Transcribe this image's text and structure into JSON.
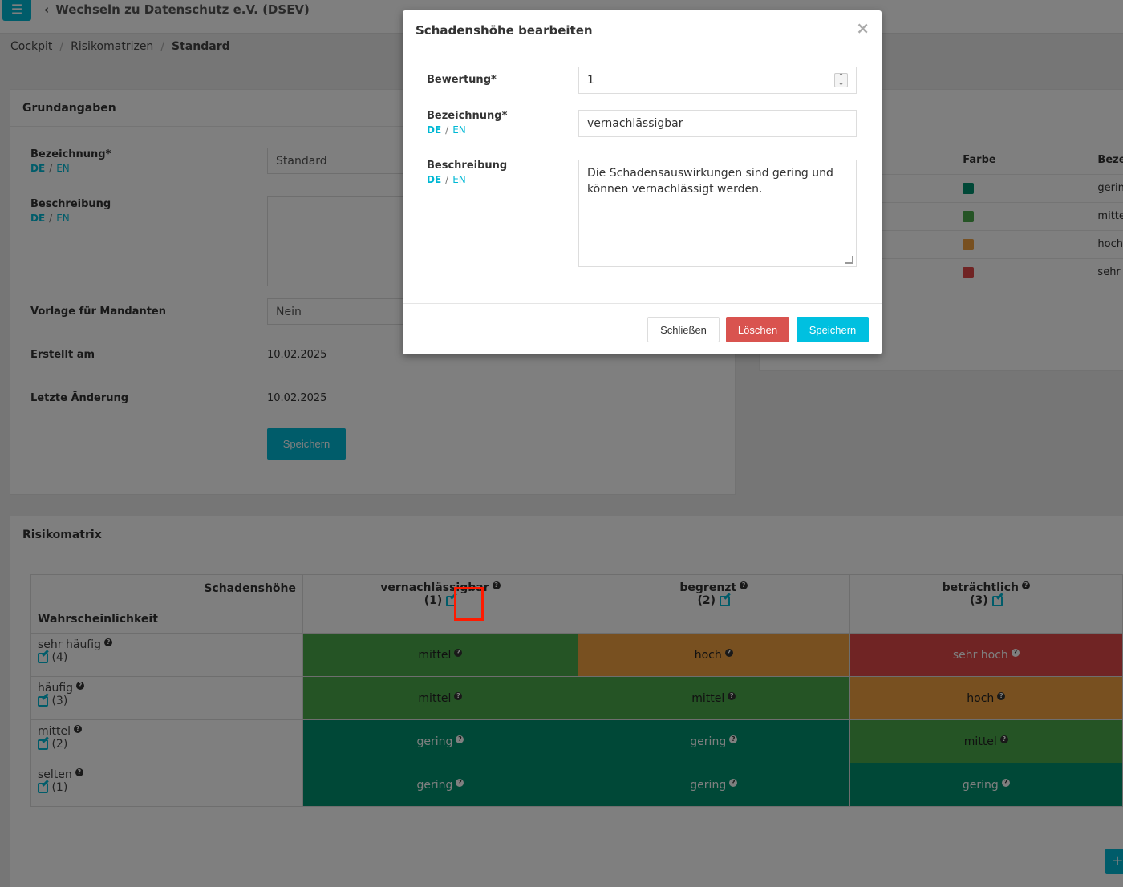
{
  "topbar": {
    "org_switch": "Wechseln zu Datenschutz e.V. (DSEV)"
  },
  "breadcrumb": {
    "items": [
      "Cockpit",
      "Risikomatrizen",
      "Standard"
    ]
  },
  "grundangaben": {
    "title": "Grundangaben",
    "bezeichnung_label": "Bezeichnung*",
    "bezeichnung_value": "Standard",
    "beschreibung_label": "Beschreibung",
    "vorlage_label": "Vorlage für Mandanten",
    "vorlage_value": "Nein",
    "erstellt_label": "Erstellt am",
    "erstellt_value": "10.02.2025",
    "aenderung_label": "Letzte Änderung",
    "aenderung_value": "10.02.2025",
    "save": "Speichern",
    "lang_de": "DE",
    "lang_en": "EN"
  },
  "legend": {
    "col_farbe": "Farbe",
    "col_bezeichnung": "Bezei",
    "rows": [
      {
        "label": "gerin",
        "color": "#00916e"
      },
      {
        "label": "mitte",
        "color": "#4aa84a"
      },
      {
        "label": "hoch",
        "color": "#f0a040"
      },
      {
        "label": "sehr l",
        "color": "#e04848"
      }
    ]
  },
  "matrix": {
    "title": "Risikomatrix",
    "corner_top": "Schadenshöhe",
    "corner_bottom": "Wahrscheinlichkeit",
    "columns": [
      {
        "label": "vernachlässigbar",
        "num": "(1)"
      },
      {
        "label": "begrenzt",
        "num": "(2)"
      },
      {
        "label": "beträchtlich",
        "num": "(3)"
      }
    ],
    "rows": [
      {
        "label": "sehr häufig",
        "num": "(4)",
        "cells": [
          "mittel",
          "hoch",
          "sehr hoch"
        ]
      },
      {
        "label": "häufig",
        "num": "(3)",
        "cells": [
          "mittel",
          "mittel",
          "hoch"
        ]
      },
      {
        "label": "mittel",
        "num": "(2)",
        "cells": [
          "gering",
          "gering",
          "mittel"
        ]
      },
      {
        "label": "selten",
        "num": "(1)",
        "cells": [
          "gering",
          "gering",
          "gering"
        ]
      }
    ],
    "level_colors": {
      "gering": "#00916e",
      "mittel": "#4aa84a",
      "hoch": "#f0a040",
      "sehr hoch": "#e04848"
    },
    "add_button": "+"
  },
  "modal": {
    "title": "Schadenshöhe bearbeiten",
    "close": "×",
    "bewertung_label": "Bewertung*",
    "bewertung_value": "1",
    "bezeichnung_label": "Bezeichnung*",
    "bezeichnung_value": "vernachlässigbar",
    "beschreibung_label": "Beschreibung",
    "beschreibung_value": "Die Schadensauswirkungen sind gering und können vernachlässigt werden.",
    "btn_close": "Schließen",
    "btn_delete": "Löschen",
    "btn_save": "Speichern"
  }
}
